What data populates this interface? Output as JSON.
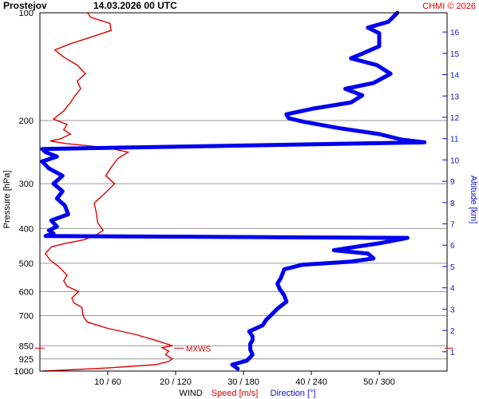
{
  "header": {
    "station": "Prostejov",
    "datetime": "14.03.2026 00 UTC",
    "copyright": "CHMI © 2026"
  },
  "colors": {
    "speed": "#e00000",
    "direction": "#0000ee",
    "grid": "#999999",
    "altitude_axis": "#1010d0"
  },
  "chart_data": {
    "type": "line",
    "title": "Prostejov    14.03.2026 00 UTC",
    "y_axis": {
      "label": "Pressure [hPa]",
      "scale": "log",
      "range": [
        1000,
        100
      ],
      "ticks": [
        100,
        200,
        300,
        400,
        500,
        600,
        700,
        850,
        925,
        1000
      ]
    },
    "y2_axis": {
      "label": "Altitude [km]",
      "ticks": [
        1,
        2,
        3,
        4,
        5,
        6,
        7,
        8,
        9,
        10,
        11,
        12,
        13,
        14,
        15,
        16
      ]
    },
    "x_axis": {
      "label": "WIND",
      "speed_label": "Speed [m/s]",
      "direction_label": "Direction [°]",
      "speed_range": [
        0,
        60
      ],
      "direction_range": [
        0,
        360
      ],
      "ticks": [
        "10 / 60",
        "20 / 120",
        "30 / 180",
        "40 / 240",
        "50 / 300"
      ]
    },
    "annotations": [
      {
        "text": "MXWS",
        "pressure": 850,
        "speed": 20
      }
    ],
    "series": [
      {
        "name": "Speed [m/s]",
        "unit": "m/s",
        "points": [
          [
            1000,
            0.5
          ],
          [
            980,
            10
          ],
          [
            960,
            17
          ],
          [
            940,
            19
          ],
          [
            925,
            19.5
          ],
          [
            900,
            18.5
          ],
          [
            880,
            19
          ],
          [
            860,
            18
          ],
          [
            850,
            19.5
          ],
          [
            820,
            17
          ],
          [
            790,
            14
          ],
          [
            760,
            10
          ],
          [
            730,
            7
          ],
          [
            710,
            6.5
          ],
          [
            690,
            6.3
          ],
          [
            665,
            6.2
          ],
          [
            645,
            5
          ],
          [
            625,
            4.7
          ],
          [
            600,
            5.7
          ],
          [
            580,
            4
          ],
          [
            560,
            3.5
          ],
          [
            540,
            4
          ],
          [
            510,
            2.7
          ],
          [
            490,
            1.5
          ],
          [
            470,
            0.8
          ],
          [
            450,
            1.7
          ],
          [
            440,
            3.8
          ],
          [
            430,
            6.5
          ],
          [
            420,
            8
          ],
          [
            405,
            9.3
          ],
          [
            385,
            8.5
          ],
          [
            360,
            8.3
          ],
          [
            340,
            8
          ],
          [
            320,
            9.5
          ],
          [
            300,
            11
          ],
          [
            285,
            9.7
          ],
          [
            270,
            10.5
          ],
          [
            255,
            11.5
          ],
          [
            245,
            13
          ],
          [
            238,
            10
          ],
          [
            232,
            4
          ],
          [
            228,
            1.5
          ],
          [
            225,
            3
          ],
          [
            218,
            4.5
          ],
          [
            212,
            3.5
          ],
          [
            205,
            4
          ],
          [
            198,
            2
          ],
          [
            188,
            3.5
          ],
          [
            178,
            4.5
          ],
          [
            170,
            5.2
          ],
          [
            163,
            6
          ],
          [
            155,
            5.5
          ],
          [
            148,
            6.7
          ],
          [
            140,
            5.5
          ],
          [
            133,
            3.5
          ],
          [
            127,
            2.2
          ],
          [
            122,
            4.5
          ],
          [
            117,
            7.5
          ],
          [
            112,
            10.5
          ],
          [
            107,
            10.3
          ],
          [
            103,
            7.5
          ],
          [
            100,
            7
          ]
        ]
      },
      {
        "name": "Direction [°]",
        "unit": "deg",
        "points": [
          [
            985,
            175
          ],
          [
            960,
            170
          ],
          [
            935,
            183
          ],
          [
            900,
            188
          ],
          [
            870,
            186
          ],
          [
            840,
            186
          ],
          [
            820,
            188
          ],
          [
            800,
            188
          ],
          [
            775,
            185
          ],
          [
            745,
            197
          ],
          [
            720,
            200
          ],
          [
            695,
            205
          ],
          [
            670,
            210
          ],
          [
            640,
            218
          ],
          [
            615,
            216
          ],
          [
            590,
            212
          ],
          [
            570,
            210
          ],
          [
            550,
            213
          ],
          [
            520,
            216
          ],
          [
            505,
            232
          ],
          [
            495,
            275
          ],
          [
            485,
            295
          ],
          [
            470,
            290
          ],
          [
            460,
            260
          ],
          [
            452,
            275
          ],
          [
            440,
            300
          ],
          [
            425,
            325
          ],
          [
            420,
            5
          ],
          [
            413,
            12
          ],
          [
            405,
            8
          ],
          [
            395,
            15
          ],
          [
            380,
            10
          ],
          [
            365,
            25
          ],
          [
            345,
            22
          ],
          [
            330,
            15
          ],
          [
            315,
            20
          ],
          [
            300,
            12
          ],
          [
            285,
            20
          ],
          [
            272,
            8
          ],
          [
            260,
            2
          ],
          [
            252,
            15
          ],
          [
            245,
            5
          ],
          [
            240,
            2
          ],
          [
            230,
            340
          ],
          [
            226,
            320
          ],
          [
            218,
            300
          ],
          [
            210,
            265
          ],
          [
            202,
            235
          ],
          [
            197,
            220
          ],
          [
            192,
            218
          ],
          [
            185,
            242
          ],
          [
            178,
            275
          ],
          [
            170,
            285
          ],
          [
            163,
            270
          ],
          [
            157,
            295
          ],
          [
            148,
            310
          ],
          [
            140,
            298
          ],
          [
            134,
            275
          ],
          [
            130,
            285
          ],
          [
            124,
            300
          ],
          [
            118,
            300
          ],
          [
            114,
            300
          ],
          [
            110,
            290
          ],
          [
            106,
            308
          ],
          [
            103,
            312
          ],
          [
            100,
            316
          ]
        ]
      }
    ]
  }
}
